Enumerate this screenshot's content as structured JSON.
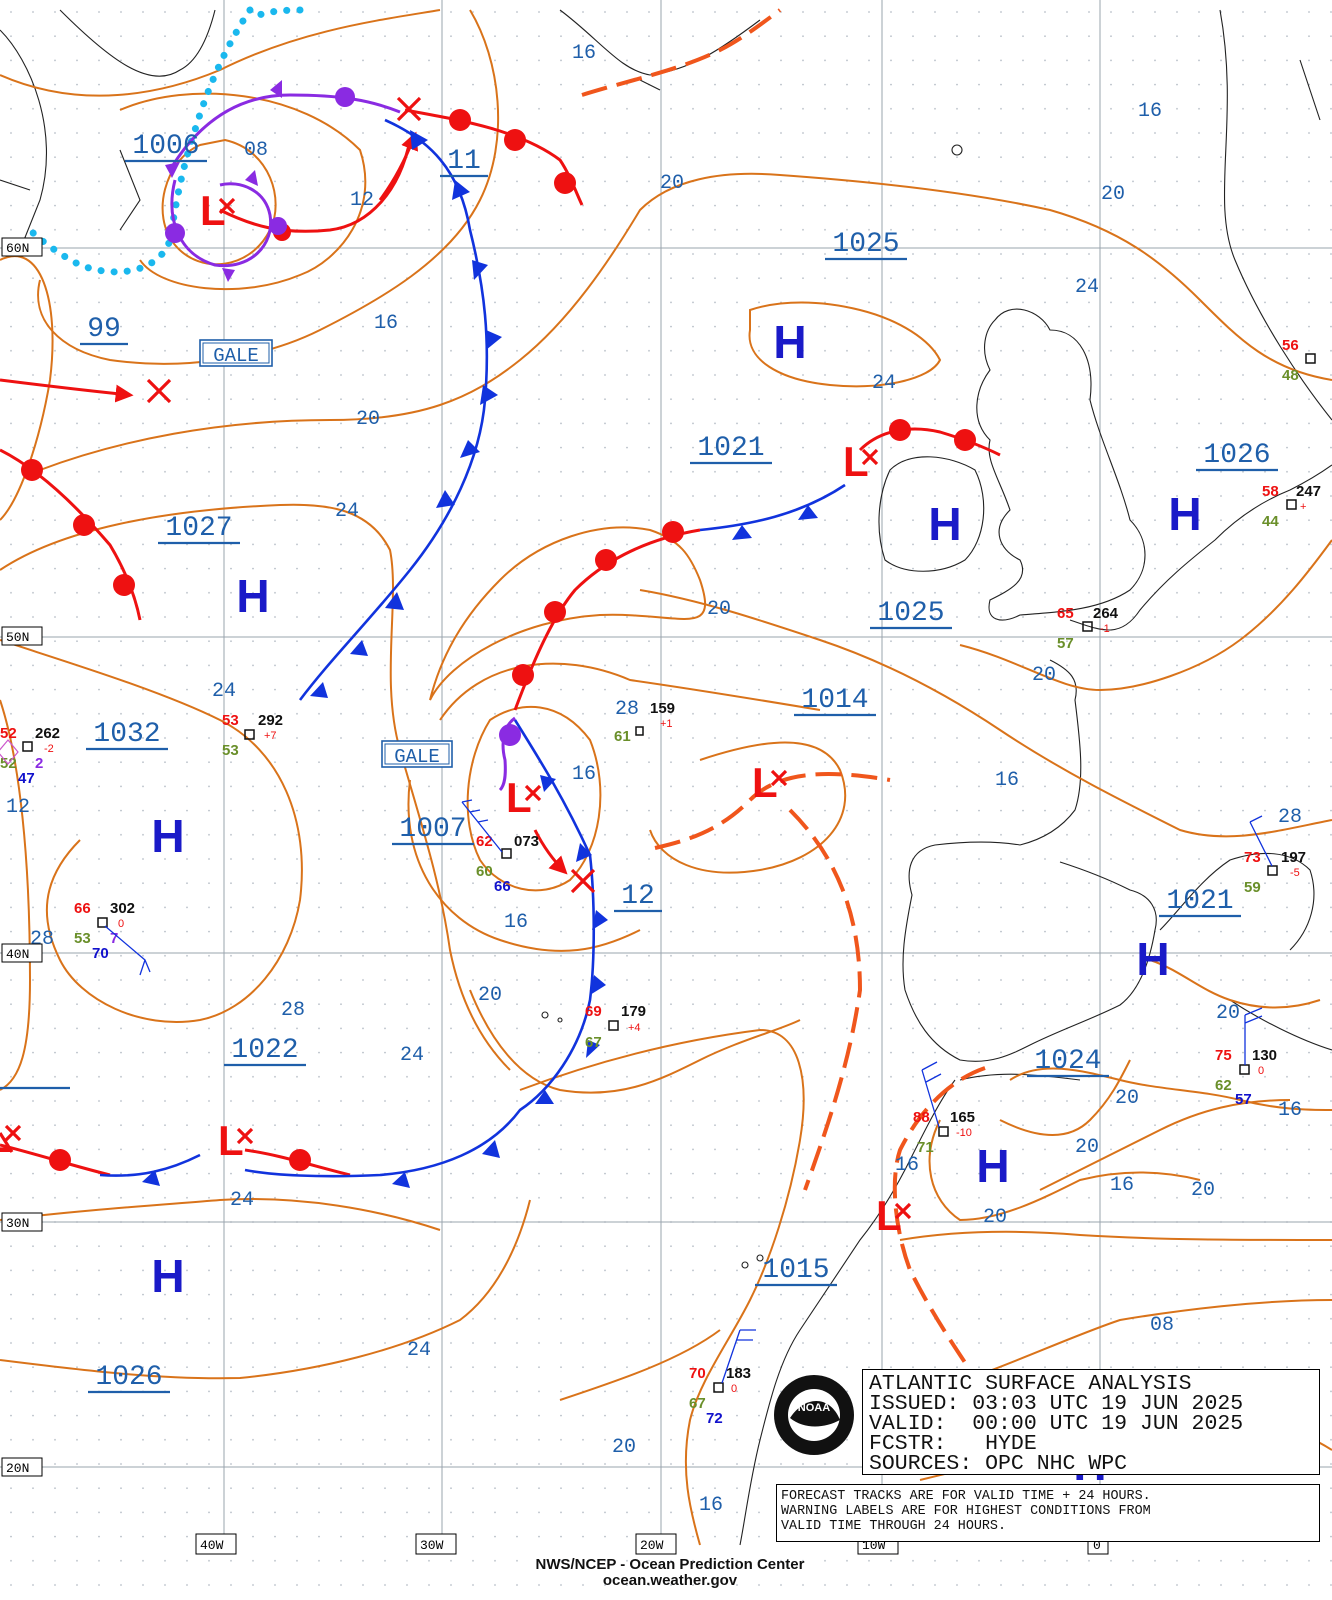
{
  "title_block": {
    "line1": "ATLANTIC SURFACE ANALYSIS",
    "line2": "ISSUED: 03:03 UTC 19 JUN 2025",
    "line3": "VALID:  00:00 UTC 19 JUN 2025",
    "line4": "FCSTR:   HYDE",
    "line5": "SOURCES: OPC NHC WPC"
  },
  "notice": {
    "line1": "FORECAST TRACKS ARE FOR VALID TIME + 24 HOURS.",
    "line2": "WARNING LABELS ARE FOR HIGHEST CONDITIONS FROM",
    "line3": "VALID TIME THROUGH 24 HOURS."
  },
  "credit": {
    "line1": "NWS/NCEP - Ocean Prediction Center",
    "line2": "ocean.weather.gov"
  },
  "latitude_labels": [
    "60N",
    "50N",
    "40N",
    "30N",
    "20N"
  ],
  "longitude_labels": [
    "40W",
    "30W",
    "20W",
    "10W",
    "0"
  ],
  "centers": {
    "highs": [
      "H",
      "H",
      "H",
      "H",
      "H",
      "H",
      "H",
      "H",
      "H",
      "H"
    ],
    "lows": [
      "L",
      "L",
      "L",
      "L",
      "L",
      "L",
      "L"
    ]
  },
  "pressure_labels": [
    "1006",
    "11",
    "99",
    "1027",
    "1025",
    "1021",
    "1025",
    "1014",
    "1032",
    "1007",
    "12",
    "1022",
    "1015",
    "1026",
    "1026",
    "1021",
    "1024"
  ],
  "isobar_labels": [
    "08",
    "12",
    "16",
    "16",
    "20",
    "20",
    "16",
    "20",
    "24",
    "24",
    "24",
    "20",
    "20",
    "24",
    "28",
    "16",
    "12",
    "16",
    "28",
    "28",
    "20",
    "24",
    "24",
    "24",
    "20",
    "20",
    "16",
    "20",
    "16",
    "16",
    "16",
    "08",
    "20",
    "16",
    "28",
    "20",
    "20",
    "16"
  ],
  "warnings": [
    "GALE",
    "GALE"
  ],
  "observations": [
    {
      "temp": "52",
      "pressure": "262",
      "tendency": "-2",
      "dewpoint": "52",
      "extra": "2",
      "sst": "47"
    },
    {
      "temp": "53",
      "pressure": "292",
      "tendency": "+7",
      "dewpoint": "53"
    },
    {
      "temp": "66",
      "pressure": "302",
      "tendency": "0",
      "dewpoint": "53",
      "extra": "7",
      "sst": "70"
    },
    {
      "temp": "62",
      "pressure": "073",
      "dewpoint": "60",
      "sst": "66"
    },
    {
      "pressure": "159",
      "tendency": "+1",
      "dewpoint": "61"
    },
    {
      "temp": "69",
      "pressure": "179",
      "tendency": "+4",
      "dewpoint": "67"
    },
    {
      "temp": "65",
      "pressure": "264",
      "tendency": "-1",
      "dewpoint": "57"
    },
    {
      "temp": "58",
      "pressure": "247",
      "tendency": "+",
      "dewpoint": "44"
    },
    {
      "temp": "56",
      "dewpoint": "48"
    },
    {
      "temp": "73",
      "pressure": "197",
      "tendency": "-5",
      "dewpoint": "59"
    },
    {
      "temp": "75",
      "pressure": "130",
      "tendency": "0",
      "dewpoint": "62",
      "sst": "57"
    },
    {
      "temp": "88",
      "pressure": "165",
      "tendency": "-10",
      "dewpoint": "71"
    },
    {
      "temp": "70",
      "pressure": "183",
      "tendency": "0",
      "dewpoint": "67",
      "sst": "72"
    }
  ],
  "colors": {
    "isobar": "#d9731a",
    "warm_front": "#ee1111",
    "cold_front": "#1133dd",
    "occluded_front": "#8a2be2",
    "trough": "#f0561c",
    "ice_edge": "#1ab8ee",
    "high_center": "#1a1ac8",
    "low_center": "#ee1111",
    "label_blue": "#1f5faa"
  }
}
